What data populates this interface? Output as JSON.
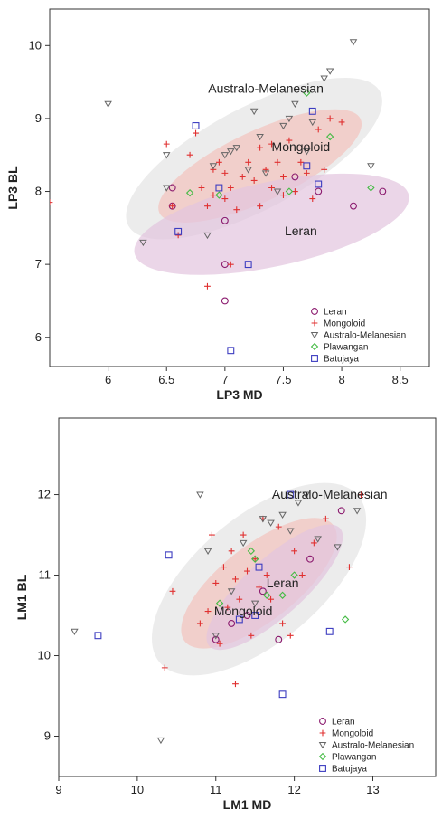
{
  "chart_data": [
    {
      "type": "scatter",
      "xlabel": "LP3 MD",
      "ylabel": "LP3 BL",
      "xlim": [
        5.5,
        8.75
      ],
      "ylim": [
        5.6,
        10.5
      ],
      "xticks": [
        "6",
        "6.5",
        "7",
        "7.5",
        "8",
        "8.5"
      ],
      "yticks": [
        "6",
        "7",
        "8",
        "9",
        "10"
      ],
      "grid": false,
      "legend_position": "bottom-right",
      "ellipses": [
        {
          "label": "Australo-Melanesian",
          "cx": 7.25,
          "cy": 8.45,
          "rx": 1.22,
          "ry": 0.7,
          "rotation_deg": -28,
          "fill": "#e4e4e4",
          "label_x": 7.35,
          "label_y": 9.35
        },
        {
          "label": "Mongoloid",
          "cx": 7.3,
          "cy": 8.35,
          "rx": 0.95,
          "ry": 0.48,
          "rotation_deg": -25,
          "fill": "#f3c3bd",
          "label_x": 7.65,
          "label_y": 8.55
        },
        {
          "label": "Leran",
          "cx": 7.4,
          "cy": 7.55,
          "rx": 1.2,
          "ry": 0.58,
          "rotation_deg": -12,
          "fill": "#e2c5de",
          "label_x": 7.65,
          "label_y": 7.4
        }
      ],
      "series": [
        {
          "name": "Leran",
          "marker": "circle",
          "color": "#8b1a6e",
          "points": [
            [
              6.55,
              7.8
            ],
            [
              6.55,
              8.05
            ],
            [
              7.0,
              7.6
            ],
            [
              7.0,
              7.0
            ],
            [
              7.0,
              6.5
            ],
            [
              7.6,
              8.2
            ],
            [
              7.8,
              8.0
            ],
            [
              8.1,
              7.8
            ],
            [
              8.35,
              8.0
            ]
          ]
        },
        {
          "name": "Mongoloid",
          "marker": "plus",
          "color": "#e03030",
          "points": [
            [
              5.5,
              7.85
            ],
            [
              6.5,
              8.65
            ],
            [
              6.55,
              7.8
            ],
            [
              6.6,
              7.4
            ],
            [
              6.7,
              8.5
            ],
            [
              6.75,
              8.8
            ],
            [
              6.8,
              8.05
            ],
            [
              6.85,
              7.8
            ],
            [
              6.9,
              7.95
            ],
            [
              6.9,
              8.3
            ],
            [
              6.95,
              8.4
            ],
            [
              7.0,
              8.25
            ],
            [
              7.0,
              7.9
            ],
            [
              7.05,
              8.05
            ],
            [
              7.1,
              7.75
            ],
            [
              7.15,
              8.2
            ],
            [
              7.2,
              8.4
            ],
            [
              7.25,
              8.15
            ],
            [
              7.3,
              7.8
            ],
            [
              7.3,
              8.6
            ],
            [
              7.35,
              8.3
            ],
            [
              7.4,
              8.65
            ],
            [
              7.4,
              8.05
            ],
            [
              7.45,
              8.4
            ],
            [
              7.5,
              8.2
            ],
            [
              7.5,
              7.95
            ],
            [
              7.55,
              8.7
            ],
            [
              7.6,
              8.0
            ],
            [
              7.65,
              8.4
            ],
            [
              7.7,
              8.25
            ],
            [
              7.75,
              7.9
            ],
            [
              7.8,
              8.85
            ],
            [
              7.85,
              8.3
            ],
            [
              7.9,
              9.0
            ],
            [
              8.0,
              8.95
            ],
            [
              6.85,
              6.7
            ],
            [
              7.05,
              7.0
            ]
          ]
        },
        {
          "name": "Australo-Melanesian",
          "marker": "triangle-down",
          "color": "#666666",
          "points": [
            [
              6.0,
              9.2
            ],
            [
              6.3,
              7.3
            ],
            [
              6.5,
              8.5
            ],
            [
              6.5,
              8.05
            ],
            [
              6.85,
              7.4
            ],
            [
              6.9,
              8.35
            ],
            [
              7.0,
              8.5
            ],
            [
              7.05,
              8.55
            ],
            [
              7.1,
              8.6
            ],
            [
              7.2,
              8.3
            ],
            [
              7.25,
              9.1
            ],
            [
              7.3,
              8.75
            ],
            [
              7.35,
              8.25
            ],
            [
              7.45,
              8.0
            ],
            [
              7.5,
              8.9
            ],
            [
              7.55,
              9.0
            ],
            [
              7.6,
              9.2
            ],
            [
              7.7,
              8.55
            ],
            [
              7.75,
              8.95
            ],
            [
              7.85,
              9.55
            ],
            [
              7.9,
              9.65
            ],
            [
              8.1,
              10.05
            ],
            [
              8.25,
              8.35
            ]
          ]
        },
        {
          "name": "Plawangan",
          "marker": "diamond",
          "color": "#44bb44",
          "points": [
            [
              6.7,
              7.98
            ],
            [
              6.95,
              7.95
            ],
            [
              7.55,
              8.0
            ],
            [
              7.7,
              9.35
            ],
            [
              7.9,
              8.75
            ],
            [
              8.25,
              8.05
            ]
          ]
        },
        {
          "name": "Batujaya",
          "marker": "square",
          "color": "#3c3cc0",
          "points": [
            [
              6.6,
              7.45
            ],
            [
              6.75,
              8.9
            ],
            [
              6.95,
              8.05
            ],
            [
              7.05,
              5.82
            ],
            [
              7.2,
              7.0
            ],
            [
              7.7,
              8.35
            ],
            [
              7.75,
              9.1
            ],
            [
              7.8,
              8.1
            ]
          ]
        }
      ]
    },
    {
      "type": "scatter",
      "xlabel": "LM1 MD",
      "ylabel": "LM1 BL",
      "xlim": [
        9.0,
        13.8
      ],
      "ylim": [
        8.5,
        12.95
      ],
      "xticks": [
        "9",
        "10",
        "11",
        "12",
        "13"
      ],
      "yticks": [
        "9",
        "10",
        "11",
        "12"
      ],
      "grid": false,
      "legend_position": "bottom-right",
      "ellipses": [
        {
          "label": "Australo-Melanesian",
          "cx": 11.55,
          "cy": 10.95,
          "rx": 1.65,
          "ry": 0.78,
          "rotation_deg": -40,
          "fill": "#e4e4e4",
          "label_x": 12.45,
          "label_y": 11.95
        },
        {
          "label": "Mongoloid",
          "cx": 11.55,
          "cy": 10.9,
          "rx": 1.2,
          "ry": 0.47,
          "rotation_deg": -38,
          "fill": "#f3c3bd",
          "label_x": 11.35,
          "label_y": 10.5
        },
        {
          "label": "Leran",
          "cx": 11.75,
          "cy": 10.85,
          "rx": 1.12,
          "ry": 0.36,
          "rotation_deg": -42,
          "fill": "#e2c5de",
          "label_x": 11.85,
          "label_y": 10.85
        }
      ],
      "series": [
        {
          "name": "Leran",
          "marker": "circle",
          "color": "#8b1a6e",
          "points": [
            [
              11.0,
              10.2
            ],
            [
              11.2,
              10.4
            ],
            [
              11.4,
              10.5
            ],
            [
              11.6,
              10.8
            ],
            [
              11.8,
              10.2
            ],
            [
              12.2,
              11.2
            ],
            [
              12.6,
              11.8
            ]
          ]
        },
        {
          "name": "Mongoloid",
          "marker": "plus",
          "color": "#e03030",
          "points": [
            [
              10.35,
              9.85
            ],
            [
              10.45,
              10.8
            ],
            [
              10.8,
              10.4
            ],
            [
              10.9,
              10.55
            ],
            [
              10.95,
              11.5
            ],
            [
              11.0,
              10.9
            ],
            [
              11.05,
              10.15
            ],
            [
              11.1,
              11.1
            ],
            [
              11.15,
              10.6
            ],
            [
              11.2,
              11.3
            ],
            [
              11.25,
              10.95
            ],
            [
              11.25,
              9.65
            ],
            [
              11.3,
              10.7
            ],
            [
              11.35,
              11.5
            ],
            [
              11.4,
              11.05
            ],
            [
              11.45,
              10.25
            ],
            [
              11.5,
              11.2
            ],
            [
              11.55,
              10.85
            ],
            [
              11.6,
              11.7
            ],
            [
              11.65,
              11.0
            ],
            [
              11.7,
              10.7
            ],
            [
              11.8,
              11.6
            ],
            [
              11.85,
              10.4
            ],
            [
              11.95,
              10.25
            ],
            [
              12.0,
              11.3
            ],
            [
              12.1,
              11.0
            ],
            [
              12.25,
              11.4
            ],
            [
              12.4,
              11.7
            ],
            [
              12.7,
              11.1
            ],
            [
              12.85,
              12.0
            ]
          ]
        },
        {
          "name": "Australo-Melanesian",
          "marker": "triangle-down",
          "color": "#666666",
          "points": [
            [
              9.2,
              10.3
            ],
            [
              10.3,
              8.95
            ],
            [
              10.8,
              12.0
            ],
            [
              10.9,
              11.3
            ],
            [
              11.0,
              10.25
            ],
            [
              11.2,
              10.8
            ],
            [
              11.35,
              11.4
            ],
            [
              11.5,
              10.65
            ],
            [
              11.6,
              11.7
            ],
            [
              11.7,
              11.65
            ],
            [
              11.85,
              11.75
            ],
            [
              11.95,
              11.55
            ],
            [
              12.05,
              11.9
            ],
            [
              12.15,
              12.0
            ],
            [
              12.3,
              11.45
            ],
            [
              12.55,
              11.35
            ],
            [
              12.8,
              11.8
            ]
          ]
        },
        {
          "name": "Plawangan",
          "marker": "diamond",
          "color": "#44bb44",
          "points": [
            [
              11.05,
              10.65
            ],
            [
              11.45,
              11.3
            ],
            [
              11.5,
              11.2
            ],
            [
              11.65,
              10.75
            ],
            [
              11.85,
              10.75
            ],
            [
              12.0,
              11.0
            ],
            [
              12.65,
              10.45
            ]
          ]
        },
        {
          "name": "Batujaya",
          "marker": "square",
          "color": "#3c3cc0",
          "points": [
            [
              9.5,
              10.25
            ],
            [
              10.4,
              11.25
            ],
            [
              11.3,
              10.45
            ],
            [
              11.5,
              10.5
            ],
            [
              11.55,
              11.1
            ],
            [
              11.85,
              9.52
            ],
            [
              11.95,
              12.0
            ],
            [
              12.45,
              10.3
            ]
          ]
        }
      ],
      "legend": [
        "Leran",
        "Mongoloid",
        "Australo-Melanesian",
        "Plawangan",
        "Batujaya"
      ]
    }
  ],
  "panels": [
    {
      "id": "top",
      "legend": [
        "Leran",
        "Mongoloid",
        "Australo-Melanesian",
        "Plawangan",
        "Batujaya"
      ]
    },
    {
      "id": "bottom"
    }
  ]
}
